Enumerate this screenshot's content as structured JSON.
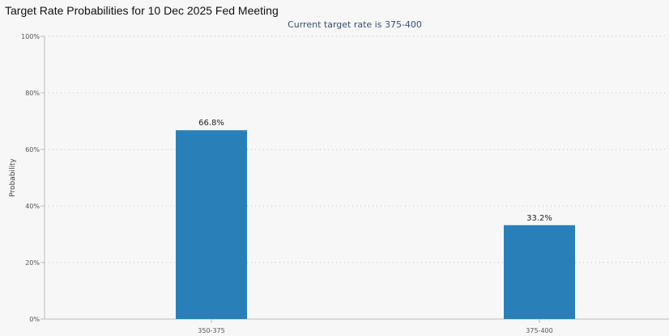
{
  "page_title": "Target Rate Probabilities for 10 Dec 2025 Fed Meeting",
  "chart_data": {
    "type": "bar",
    "title": "Target Rate Probabilities for 10 Dec 2025 Fed Meeting",
    "subtitle": "Current target rate is 375-400",
    "categories": [
      "350-375",
      "375-400"
    ],
    "values": [
      66.8,
      33.2
    ],
    "data_labels": [
      "66.8%",
      "33.2%"
    ],
    "ylabel": "Probability",
    "xlabel": "",
    "ylim": [
      0,
      100
    ],
    "yticks": [
      0,
      20,
      40,
      60,
      80,
      100
    ],
    "ytick_labels": [
      "0%",
      "20%",
      "40%",
      "60%",
      "80%",
      "100%"
    ],
    "grid": true,
    "bar_color": "#2980b9"
  }
}
